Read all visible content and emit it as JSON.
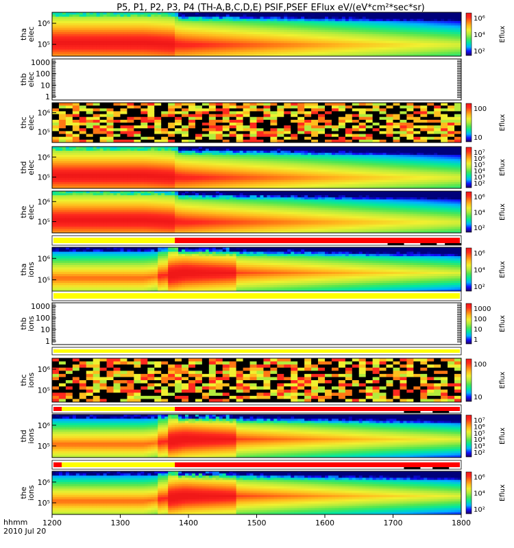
{
  "chart_data": {
    "type": "heatmap",
    "title": "P5, P1, P2, P3, P4 (TH-A,B,C,D,E) PSIF,PSEF EFlux eV/(eV*cm²*sec*sr)",
    "x_label": "hhmm",
    "date_label": "2010 Jul 20",
    "x_range": [
      1200,
      1800
    ],
    "x_ticks": [
      "1200",
      "1300",
      "1400",
      "1500",
      "1600",
      "1700",
      "1800"
    ],
    "colorbar_label": "Eflux",
    "panels": [
      {
        "label1": "tha",
        "label2": "elec",
        "kind": "plasma",
        "yticks": [
          "10⁶",
          "10⁵"
        ],
        "cb_ticks": [
          "10⁶",
          "10⁴",
          "10²"
        ]
      },
      {
        "label1": "thb",
        "label2": "elec",
        "kind": "empty",
        "yticks": [
          "1000",
          "100",
          "10",
          "1"
        ],
        "cb_ticks": []
      },
      {
        "label1": "thc",
        "label2": "elec",
        "kind": "noise",
        "yticks": [
          "10⁶",
          "10⁵"
        ],
        "cb_ticks": [
          "100",
          "10"
        ]
      },
      {
        "label1": "thd",
        "label2": "elec",
        "kind": "plasma",
        "yticks": [
          "10⁶",
          "10⁵"
        ],
        "cb_ticks": [
          "10⁷",
          "10⁶",
          "10⁵",
          "10⁴",
          "10³",
          "10²"
        ]
      },
      {
        "label1": "the",
        "label2": "elec",
        "kind": "plasma",
        "yticks": [
          "10⁶",
          "10⁵"
        ],
        "cb_ticks": [
          "10⁶",
          "10⁴",
          "10²"
        ]
      },
      {
        "label1": "tha",
        "label2": "ions",
        "kind": "plasma",
        "yticks": [
          "10⁶",
          "10⁵"
        ],
        "cb_ticks": [
          "10⁶",
          "10⁴",
          "10²"
        ]
      },
      {
        "label1": "thb",
        "label2": "ions",
        "kind": "empty",
        "yticks": [
          "1000",
          "100",
          "10",
          "1"
        ],
        "cb_ticks": [
          "1000",
          "100",
          "10",
          "1"
        ]
      },
      {
        "label1": "thc",
        "label2": "ions",
        "kind": "noise",
        "yticks": [
          "10⁶",
          "10⁵"
        ],
        "cb_ticks": [
          "100",
          "10"
        ]
      },
      {
        "label1": "thd",
        "label2": "ions",
        "kind": "plasma",
        "yticks": [
          "10⁶",
          "10⁵"
        ],
        "cb_ticks": [
          "10⁷",
          "10⁶",
          "10⁵",
          "10⁴",
          "10³",
          "10²"
        ]
      },
      {
        "label1": "the",
        "label2": "ions",
        "kind": "plasma",
        "yticks": [
          "10⁶",
          "10⁵"
        ],
        "cb_ticks": [
          "10⁶",
          "10⁴",
          "10²"
        ]
      }
    ],
    "colorscale": [
      "#00007a",
      "#1010ff",
      "#00b4ff",
      "#00e8a0",
      "#50e650",
      "#b4ec3c",
      "#f0f030",
      "#ffbe1e",
      "#ff7814",
      "#ff2a1e",
      "#f01818"
    ],
    "mode_bar_colors": {
      "fast": "#ffff00",
      "slow": "#ff0000",
      "gap": "#000000"
    }
  }
}
